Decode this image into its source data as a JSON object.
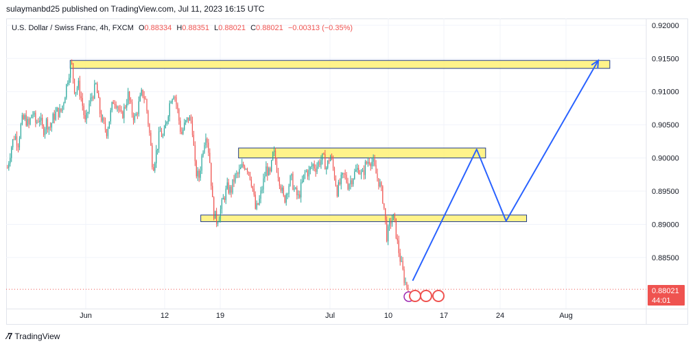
{
  "header": {
    "published": "sulaymanbd25 published on TradingView.com, Jul 11, 2023 16:15 UTC"
  },
  "legend": {
    "symbol": "U.S. Dollar / Swiss Franc, 4h, FXCM",
    "o_label": "O",
    "o": "0.88334",
    "h_label": "H",
    "h": "0.88351",
    "l_label": "L",
    "l": "0.88021",
    "c_label": "C",
    "c": "0.88021",
    "change": "−0.00313 (−0.35%)"
  },
  "price_axis": {
    "ticks": [
      "0.92000",
      "0.91500",
      "0.91000",
      "0.90500",
      "0.90000",
      "0.89500",
      "0.89000",
      "0.88500"
    ],
    "last_price": "0.88021",
    "countdown": "44:01"
  },
  "time_axis": {
    "ticks": [
      "Jun",
      "12",
      "19",
      "Jul",
      "10",
      "17",
      "24",
      "Aug"
    ]
  },
  "footer": {
    "brand": "TradingView"
  },
  "colors": {
    "up": "#26a69a",
    "down": "#ef5350",
    "zone_fill": "#fff176",
    "zone_border": "#1e3a8a",
    "projection": "#2962ff"
  },
  "chart_data": {
    "type": "candlestick",
    "title": "U.S. Dollar / Swiss Franc, 4h, FXCM",
    "ylim": [
      0.879,
      0.9205
    ],
    "yticks": [
      0.885,
      0.89,
      0.895,
      0.9,
      0.905,
      0.91,
      0.915,
      0.92
    ],
    "xticks": [
      "Jun",
      "12",
      "19",
      "Jul",
      "10",
      "17",
      "24",
      "Aug"
    ],
    "last_close": 0.88021,
    "path_closes": [
      0.8985,
      0.9015,
      0.9035,
      0.9022,
      0.9055,
      0.906,
      0.9048,
      0.907,
      0.9052,
      0.9062,
      0.904,
      0.9055,
      0.9045,
      0.9062,
      0.907,
      0.9068,
      0.909,
      0.912,
      0.9145,
      0.91,
      0.911,
      0.9085,
      0.905,
      0.908,
      0.9095,
      0.911,
      0.907,
      0.905,
      0.904,
      0.9065,
      0.909,
      0.908,
      0.906,
      0.9075,
      0.9095,
      0.907,
      0.9058,
      0.908,
      0.91,
      0.9085,
      0.904,
      0.8985,
      0.901,
      0.904,
      0.903,
      0.906,
      0.909,
      0.91,
      0.907,
      0.9035,
      0.905,
      0.906,
      0.9055,
      0.898,
      0.897,
      0.901,
      0.904,
      0.9,
      0.892,
      0.8905,
      0.892,
      0.894,
      0.8955,
      0.895,
      0.897,
      0.8975,
      0.8985,
      0.899,
      0.8982,
      0.896,
      0.892,
      0.8935,
      0.896,
      0.8985,
      0.8972,
      0.901,
      0.8985,
      0.896,
      0.8935,
      0.8955,
      0.897,
      0.895,
      0.894,
      0.896,
      0.898,
      0.8978,
      0.899,
      0.8986,
      0.8995,
      0.9,
      0.8985,
      0.9005,
      0.898,
      0.895,
      0.8965,
      0.8975,
      0.896,
      0.8968,
      0.8978,
      0.8985,
      0.8972,
      0.899,
      0.8998,
      0.8994,
      0.8975,
      0.896,
      0.8935,
      0.888,
      0.8905,
      0.891,
      0.887,
      0.884,
      0.8815,
      0.8802
    ],
    "zones": [
      {
        "name": "upper-zone",
        "from": 0.9147,
        "to": 0.9135,
        "start": 0.1,
        "end": 0.943
      },
      {
        "name": "middle-zone",
        "from": 0.9015,
        "to": 0.9,
        "start": 0.363,
        "end": 0.749
      },
      {
        "name": "lower-zone",
        "from": 0.8914,
        "to": 0.8904,
        "start": 0.304,
        "end": 0.813
      }
    ],
    "projection": [
      {
        "t": 0.635,
        "price": 0.8815
      },
      {
        "t": 0.735,
        "price": 0.9013
      },
      {
        "t": 0.781,
        "price": 0.8905
      },
      {
        "t": 0.925,
        "price": 0.9147
      }
    ]
  }
}
